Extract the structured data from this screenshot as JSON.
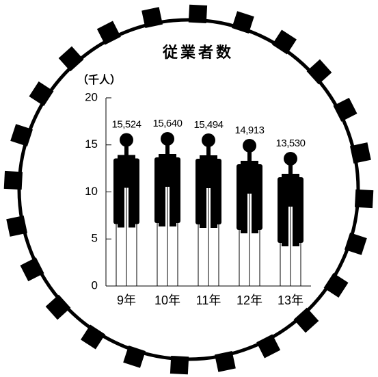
{
  "chart_data": {
    "type": "pictogram",
    "title": "従業者数",
    "ylabel": "（千人）",
    "categories": [
      "9年",
      "10年",
      "11年",
      "12年",
      "13年"
    ],
    "values": [
      15.524,
      15.64,
      15.494,
      14.913,
      13.53
    ],
    "value_labels": [
      "15,524",
      "15,640",
      "15,494",
      "14,913",
      "13,530"
    ],
    "color": "#000000",
    "ylim": [
      0,
      20
    ],
    "yticks": [
      0,
      5,
      10,
      15,
      20
    ]
  }
}
